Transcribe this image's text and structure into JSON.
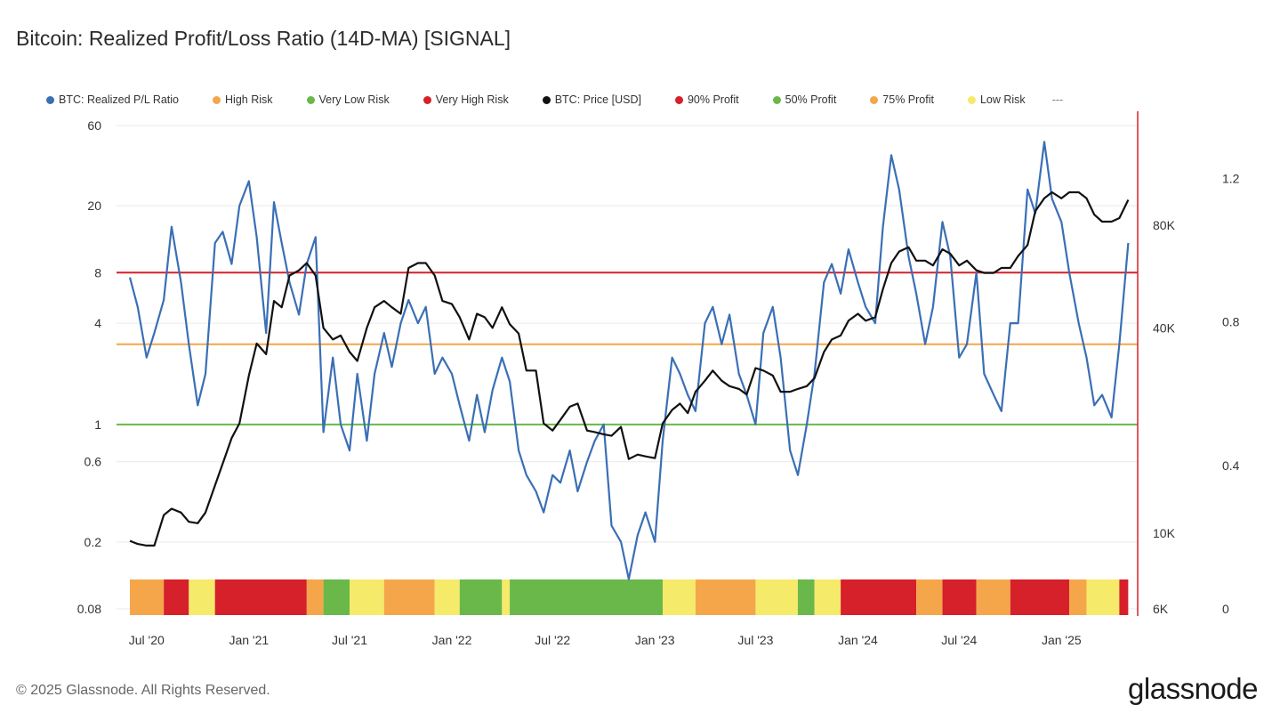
{
  "chart_data": {
    "type": "line",
    "title": "Bitcoin: Realized Profit/Loss Ratio (14D-MA) [SIGNAL]",
    "legend": [
      {
        "name": "BTC: Realized P/L Ratio",
        "color": "#3a6fb5"
      },
      {
        "name": "High Risk",
        "color": "#f5a64a"
      },
      {
        "name": "Very Low Risk",
        "color": "#6ab84a"
      },
      {
        "name": "Very High Risk",
        "color": "#d6202a"
      },
      {
        "name": "BTC: Price [USD]",
        "color": "#111111"
      },
      {
        "name": "90% Profit",
        "color": "#d6202a"
      },
      {
        "name": "50% Profit",
        "color": "#6ab84a"
      },
      {
        "name": "75% Profit",
        "color": "#f5a64a"
      },
      {
        "name": "Low Risk",
        "color": "#f5ea6a"
      }
    ],
    "legend_more": "---",
    "legend_placement": "top",
    "x_ticks": [
      "Jul '20",
      "Jan '21",
      "Jul '21",
      "Jan '22",
      "Jul '22",
      "Jan '23",
      "Jul '23",
      "Jan '24",
      "Jul '24",
      "Jan '25"
    ],
    "y_left": {
      "scale": "log",
      "ticks": [
        "60",
        "20",
        "8",
        "4",
        "1",
        "0.6",
        "0.2",
        "0.08"
      ],
      "range": [
        0.08,
        60
      ]
    },
    "y_price": {
      "scale": "log",
      "ticks": [
        "80K",
        "40K",
        "10K",
        "6K"
      ],
      "range": [
        6000,
        140000
      ]
    },
    "y_right": {
      "scale": "linear",
      "ticks": [
        "1.2",
        "0.8",
        "0.4",
        "0"
      ],
      "range": [
        0,
        1.3
      ]
    },
    "reference_lines": [
      {
        "name": "Very High Risk",
        "value": 8,
        "color": "#d6202a"
      },
      {
        "name": "High Risk",
        "value": 3,
        "color": "#f5a64a"
      },
      {
        "name": "Very Low Risk",
        "value": 1,
        "color": "#6ab84a"
      }
    ],
    "series": [
      {
        "name": "BTC: Realized P/L Ratio",
        "color": "#3a6fb5",
        "x": [
          "2020-06-01",
          "2020-06-15",
          "2020-07-01",
          "2020-07-15",
          "2020-08-01",
          "2020-08-15",
          "2020-09-01",
          "2020-09-15",
          "2020-10-01",
          "2020-10-15",
          "2020-11-01",
          "2020-11-15",
          "2020-12-01",
          "2020-12-15",
          "2021-01-01",
          "2021-01-15",
          "2021-02-01",
          "2021-02-15",
          "2021-03-01",
          "2021-03-15",
          "2021-04-01",
          "2021-04-15",
          "2021-05-01",
          "2021-05-15",
          "2021-06-01",
          "2021-06-15",
          "2021-07-01",
          "2021-07-15",
          "2021-08-01",
          "2021-08-15",
          "2021-09-01",
          "2021-09-15",
          "2021-10-01",
          "2021-10-15",
          "2021-11-01",
          "2021-11-15",
          "2021-12-01",
          "2021-12-15",
          "2022-01-01",
          "2022-01-15",
          "2022-02-01",
          "2022-02-15",
          "2022-03-01",
          "2022-03-15",
          "2022-04-01",
          "2022-04-15",
          "2022-05-01",
          "2022-05-15",
          "2022-06-01",
          "2022-06-15",
          "2022-07-01",
          "2022-07-15",
          "2022-08-01",
          "2022-08-15",
          "2022-09-01",
          "2022-09-15",
          "2022-10-01",
          "2022-10-15",
          "2022-11-01",
          "2022-11-15",
          "2022-12-01",
          "2022-12-15",
          "2023-01-01",
          "2023-01-15",
          "2023-02-01",
          "2023-02-15",
          "2023-03-01",
          "2023-03-15",
          "2023-04-01",
          "2023-04-15",
          "2023-05-01",
          "2023-05-15",
          "2023-06-01",
          "2023-06-15",
          "2023-07-01",
          "2023-07-15",
          "2023-08-01",
          "2023-08-15",
          "2023-09-01",
          "2023-09-15",
          "2023-10-01",
          "2023-10-15",
          "2023-11-01",
          "2023-11-15",
          "2023-12-01",
          "2023-12-15",
          "2024-01-01",
          "2024-01-15",
          "2024-02-01",
          "2024-02-15",
          "2024-03-01",
          "2024-03-15",
          "2024-04-01",
          "2024-04-15",
          "2024-05-01",
          "2024-05-15",
          "2024-06-01",
          "2024-06-15",
          "2024-07-01",
          "2024-07-15",
          "2024-08-01",
          "2024-08-15",
          "2024-09-01",
          "2024-09-15",
          "2024-10-01",
          "2024-10-15",
          "2024-11-01",
          "2024-11-15",
          "2024-12-01",
          "2024-12-15",
          "2025-01-01",
          "2025-01-15",
          "2025-02-01",
          "2025-02-15",
          "2025-03-01",
          "2025-03-15",
          "2025-04-01",
          "2025-04-15",
          "2025-05-01"
        ],
        "values": [
          7.5,
          5.0,
          2.5,
          3.5,
          5.5,
          15.0,
          7.0,
          3.0,
          1.3,
          2.0,
          12.0,
          14.0,
          9.0,
          20.0,
          28.0,
          13.0,
          3.5,
          21.0,
          12.0,
          7.0,
          4.5,
          9.0,
          13.0,
          0.9,
          2.5,
          1.0,
          0.7,
          2.0,
          0.8,
          2.0,
          3.5,
          2.2,
          4.0,
          5.5,
          4.0,
          5.0,
          2.0,
          2.5,
          2.0,
          1.3,
          0.8,
          1.5,
          0.9,
          1.6,
          2.5,
          1.8,
          0.7,
          0.5,
          0.4,
          0.3,
          0.5,
          0.45,
          0.7,
          0.4,
          0.6,
          0.8,
          1.0,
          0.25,
          0.2,
          0.12,
          0.22,
          0.3,
          0.2,
          0.8,
          2.5,
          2.0,
          1.5,
          1.2,
          4.0,
          5.0,
          3.0,
          4.5,
          2.0,
          1.5,
          1.0,
          3.5,
          5.0,
          2.5,
          0.7,
          0.5,
          1.0,
          2.0,
          7.0,
          9.0,
          6.0,
          11.0,
          7.0,
          5.0,
          4.0,
          15.0,
          40.0,
          25.0,
          10.0,
          6.0,
          3.0,
          5.0,
          16.0,
          10.0,
          2.5,
          3.0,
          8.0,
          2.0,
          1.5,
          1.2,
          4.0,
          4.0,
          25.0,
          18.0,
          48.0,
          22.0,
          16.0,
          8.0,
          4.0,
          2.5,
          1.3,
          1.5,
          1.1,
          3.0,
          12.0
        ]
      },
      {
        "name": "BTC: Price [USD]",
        "color": "#111111",
        "x": [
          "2020-06-01",
          "2020-06-15",
          "2020-07-01",
          "2020-07-15",
          "2020-08-01",
          "2020-08-15",
          "2020-09-01",
          "2020-09-15",
          "2020-10-01",
          "2020-10-15",
          "2020-11-01",
          "2020-11-15",
          "2020-12-01",
          "2020-12-15",
          "2021-01-01",
          "2021-01-15",
          "2021-02-01",
          "2021-02-15",
          "2021-03-01",
          "2021-03-15",
          "2021-04-01",
          "2021-04-15",
          "2021-05-01",
          "2021-05-15",
          "2021-06-01",
          "2021-06-15",
          "2021-07-01",
          "2021-07-15",
          "2021-08-01",
          "2021-08-15",
          "2021-09-01",
          "2021-09-15",
          "2021-10-01",
          "2021-10-15",
          "2021-11-01",
          "2021-11-15",
          "2021-12-01",
          "2021-12-15",
          "2022-01-01",
          "2022-01-15",
          "2022-02-01",
          "2022-02-15",
          "2022-03-01",
          "2022-03-15",
          "2022-04-01",
          "2022-04-15",
          "2022-05-01",
          "2022-05-15",
          "2022-06-01",
          "2022-06-15",
          "2022-07-01",
          "2022-07-15",
          "2022-08-01",
          "2022-08-15",
          "2022-09-01",
          "2022-09-15",
          "2022-10-01",
          "2022-10-15",
          "2022-11-01",
          "2022-11-15",
          "2022-12-01",
          "2022-12-15",
          "2023-01-01",
          "2023-01-15",
          "2023-02-01",
          "2023-02-15",
          "2023-03-01",
          "2023-03-15",
          "2023-04-01",
          "2023-04-15",
          "2023-05-01",
          "2023-05-15",
          "2023-06-01",
          "2023-06-15",
          "2023-07-01",
          "2023-07-15",
          "2023-08-01",
          "2023-08-15",
          "2023-09-01",
          "2023-09-15",
          "2023-10-01",
          "2023-10-15",
          "2023-11-01",
          "2023-11-15",
          "2023-12-01",
          "2023-12-15",
          "2024-01-01",
          "2024-01-15",
          "2024-02-01",
          "2024-02-15",
          "2024-03-01",
          "2024-03-15",
          "2024-04-01",
          "2024-04-15",
          "2024-05-01",
          "2024-05-15",
          "2024-06-01",
          "2024-06-15",
          "2024-07-01",
          "2024-07-15",
          "2024-08-01",
          "2024-08-15",
          "2024-09-01",
          "2024-09-15",
          "2024-10-01",
          "2024-10-15",
          "2024-11-01",
          "2024-11-15",
          "2024-12-01",
          "2024-12-15",
          "2025-01-01",
          "2025-01-15",
          "2025-02-01",
          "2025-02-15",
          "2025-03-01",
          "2025-03-15",
          "2025-04-01",
          "2025-04-15",
          "2025-05-01"
        ],
        "values": [
          9500,
          9300,
          9200,
          9200,
          11300,
          11800,
          11500,
          10800,
          10700,
          11500,
          13800,
          16000,
          19000,
          21000,
          29000,
          36000,
          33500,
          48000,
          46000,
          57000,
          59000,
          62000,
          57000,
          40000,
          37000,
          38000,
          34000,
          32000,
          40000,
          46000,
          48000,
          46000,
          44000,
          60000,
          62000,
          62000,
          57000,
          48000,
          47000,
          43000,
          37000,
          44000,
          43000,
          40000,
          46000,
          41000,
          38500,
          30000,
          30000,
          21000,
          20000,
          21500,
          23500,
          24000,
          20000,
          19800,
          19500,
          19300,
          20500,
          16500,
          17000,
          16800,
          16600,
          21000,
          23000,
          24000,
          22500,
          26000,
          28000,
          30000,
          28000,
          27000,
          26500,
          25500,
          30500,
          30000,
          29000,
          26000,
          26000,
          26500,
          27000,
          28500,
          34000,
          37000,
          38000,
          42000,
          44000,
          42000,
          43000,
          52000,
          62000,
          67000,
          69000,
          63000,
          63000,
          61000,
          68000,
          66000,
          61000,
          63000,
          59000,
          58000,
          58000,
          60000,
          60000,
          65000,
          70000,
          88000,
          96000,
          100000,
          96000,
          100000,
          100000,
          96000,
          86000,
          82000,
          82000,
          84000,
          95000
        ]
      }
    ],
    "signal_band": [
      {
        "from": "2020-06-01",
        "to": "2020-08-01",
        "risk": "High Risk"
      },
      {
        "from": "2020-08-01",
        "to": "2020-09-15",
        "risk": "Very High Risk"
      },
      {
        "from": "2020-09-15",
        "to": "2020-11-01",
        "risk": "Low Risk"
      },
      {
        "from": "2020-11-01",
        "to": "2021-04-15",
        "risk": "Very High Risk"
      },
      {
        "from": "2021-04-15",
        "to": "2021-05-15",
        "risk": "High Risk"
      },
      {
        "from": "2021-05-15",
        "to": "2021-07-01",
        "risk": "Very Low Risk"
      },
      {
        "from": "2021-07-01",
        "to": "2021-09-01",
        "risk": "Low Risk"
      },
      {
        "from": "2021-09-01",
        "to": "2021-12-01",
        "risk": "High Risk"
      },
      {
        "from": "2021-12-01",
        "to": "2022-01-15",
        "risk": "Low Risk"
      },
      {
        "from": "2022-01-15",
        "to": "2022-04-01",
        "risk": "Very Low Risk"
      },
      {
        "from": "2022-04-01",
        "to": "2022-04-15",
        "risk": "Low Risk"
      },
      {
        "from": "2022-04-15",
        "to": "2023-01-15",
        "risk": "Very Low Risk"
      },
      {
        "from": "2023-01-15",
        "to": "2023-03-15",
        "risk": "Low Risk"
      },
      {
        "from": "2023-03-15",
        "to": "2023-07-01",
        "risk": "High Risk"
      },
      {
        "from": "2023-07-01",
        "to": "2023-09-15",
        "risk": "Low Risk"
      },
      {
        "from": "2023-09-15",
        "to": "2023-10-15",
        "risk": "Very Low Risk"
      },
      {
        "from": "2023-10-15",
        "to": "2023-12-01",
        "risk": "Low Risk"
      },
      {
        "from": "2023-12-01",
        "to": "2024-04-15",
        "risk": "Very High Risk"
      },
      {
        "from": "2024-04-15",
        "to": "2024-06-01",
        "risk": "High Risk"
      },
      {
        "from": "2024-06-01",
        "to": "2024-08-01",
        "risk": "Very High Risk"
      },
      {
        "from": "2024-08-01",
        "to": "2024-10-01",
        "risk": "High Risk"
      },
      {
        "from": "2024-10-01",
        "to": "2025-01-15",
        "risk": "Very High Risk"
      },
      {
        "from": "2025-01-15",
        "to": "2025-02-15",
        "risk": "High Risk"
      },
      {
        "from": "2025-02-15",
        "to": "2025-04-15",
        "risk": "Low Risk"
      },
      {
        "from": "2025-04-15",
        "to": "2025-05-01",
        "risk": "Very High Risk"
      }
    ]
  },
  "footer": {
    "copyright": "© 2025 Glassnode. All Rights Reserved.",
    "logo": "glassnode"
  }
}
